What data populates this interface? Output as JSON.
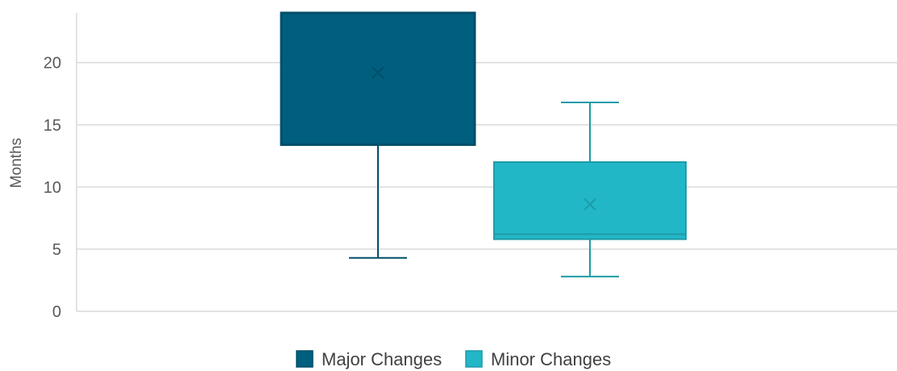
{
  "chart_data": {
    "type": "boxplot",
    "ylabel": "Months",
    "ylim": [
      0,
      24
    ],
    "yticks": [
      0,
      5,
      10,
      15,
      20
    ],
    "grid": true,
    "legend_position": "bottom",
    "series": [
      {
        "name": "Major Changes",
        "color": "#005F7F",
        "min": 4.3,
        "q1": 13.4,
        "median": 24,
        "q3": 24,
        "max": 24,
        "mean": 19.2
      },
      {
        "name": "Minor Changes",
        "color": "#22B7C7",
        "min": 2.8,
        "q1": 5.8,
        "median": 6.2,
        "q3": 12.0,
        "max": 16.8,
        "mean": 8.6
      }
    ]
  }
}
